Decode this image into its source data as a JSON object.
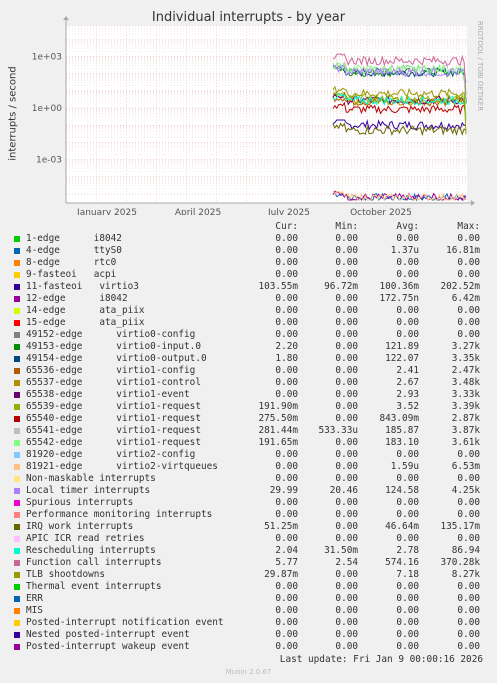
{
  "title": "Individual interrupts - by year",
  "watermark": "RRDTOOL / TOBI OETIKER",
  "footer": "Munin 2.0.67",
  "last_update": "Last update: Fri Jan  9 00:00:16 2026",
  "columns": [
    "Cur:",
    "Min:",
    "Avg:",
    "Max:"
  ],
  "chart_data": {
    "type": "line",
    "title": "Individual interrupts - by year",
    "ylabel": "interrupts / second",
    "xlabel": "",
    "y_scale": "log",
    "ylim": [
      3e-06,
      60000
    ],
    "y_ticks": [
      {
        "value": 0.001,
        "label": "1e-03"
      },
      {
        "value": 1,
        "label": "1e+00"
      },
      {
        "value": 1000,
        "label": "1e+03"
      }
    ],
    "x_ticks": [
      "January 2025",
      "April 2025",
      "July 2025",
      "October 2025"
    ],
    "grid": true,
    "series": [
      {
        "name": "1-edge      i8042",
        "color": "#00cc00",
        "cur": "0.00",
        "min": "0.00",
        "avg": "0.00",
        "max": "0.00"
      },
      {
        "name": "4-edge      ttyS0",
        "color": "#0066b3",
        "cur": "0.00",
        "min": "0.00",
        "avg": "1.37u",
        "max": "16.81m"
      },
      {
        "name": "8-edge      rtc0",
        "color": "#ff8000",
        "cur": "0.00",
        "min": "0.00",
        "avg": "0.00",
        "max": "0.00"
      },
      {
        "name": "9-fasteoi   acpi",
        "color": "#ffcc00",
        "cur": "0.00",
        "min": "0.00",
        "avg": "0.00",
        "max": "0.00"
      },
      {
        "name": "11-fasteoi   virtio3",
        "color": "#330099",
        "cur": "103.55m",
        "min": "96.72m",
        "avg": "100.36m",
        "max": "202.52m"
      },
      {
        "name": "12-edge      i8042",
        "color": "#990099",
        "cur": "0.00",
        "min": "0.00",
        "avg": "172.75n",
        "max": "6.42m"
      },
      {
        "name": "14-edge      ata_piix",
        "color": "#ccff00",
        "cur": "0.00",
        "min": "0.00",
        "avg": "0.00",
        "max": "0.00"
      },
      {
        "name": "15-edge      ata_piix",
        "color": "#ff0000",
        "cur": "0.00",
        "min": "0.00",
        "avg": "0.00",
        "max": "0.00"
      },
      {
        "name": "49152-edge      virtio0-config",
        "color": "#808080",
        "cur": "0.00",
        "min": "0.00",
        "avg": "0.00",
        "max": "0.00"
      },
      {
        "name": "49153-edge      virtio0-input.0",
        "color": "#008f00",
        "cur": "2.20",
        "min": "0.00",
        "avg": "121.89",
        "max": "3.27k"
      },
      {
        "name": "49154-edge      virtio0-output.0",
        "color": "#00487d",
        "cur": "1.80",
        "min": "0.00",
        "avg": "122.07",
        "max": "3.35k"
      },
      {
        "name": "65536-edge      virtio1-config",
        "color": "#b35a00",
        "cur": "0.00",
        "min": "0.00",
        "avg": "2.41",
        "max": "2.47k"
      },
      {
        "name": "65537-edge      virtio1-control",
        "color": "#b38f00",
        "cur": "0.00",
        "min": "0.00",
        "avg": "2.67",
        "max": "3.48k"
      },
      {
        "name": "65538-edge      virtio1-event",
        "color": "#6b006b",
        "cur": "0.00",
        "min": "0.00",
        "avg": "2.93",
        "max": "3.33k"
      },
      {
        "name": "65539-edge      virtio1-request",
        "color": "#8fb300",
        "cur": "191.90m",
        "min": "0.00",
        "avg": "3.52",
        "max": "3.39k"
      },
      {
        "name": "65540-edge      virtio1-request",
        "color": "#b30000",
        "cur": "275.50m",
        "min": "0.00",
        "avg": "843.09m",
        "max": "2.87k"
      },
      {
        "name": "65541-edge      virtio1-request",
        "color": "#bebebe",
        "cur": "281.44m",
        "min": "533.33u",
        "avg": "185.87",
        "max": "3.87k"
      },
      {
        "name": "65542-edge      virtio1-request",
        "color": "#80ff80",
        "cur": "191.65m",
        "min": "0.00",
        "avg": "183.10",
        "max": "3.61k"
      },
      {
        "name": "81920-edge      virtio2-config",
        "color": "#80c9ff",
        "cur": "0.00",
        "min": "0.00",
        "avg": "0.00",
        "max": "0.00"
      },
      {
        "name": "81921-edge      virtio2-virtqueues",
        "color": "#ffc080",
        "cur": "0.00",
        "min": "0.00",
        "avg": "1.59u",
        "max": "6.53m"
      },
      {
        "name": "Non-maskable interrupts",
        "color": "#ffe680",
        "cur": "0.00",
        "min": "0.00",
        "avg": "0.00",
        "max": "0.00"
      },
      {
        "name": "Local timer interrupts",
        "color": "#aa80ff",
        "cur": "29.99",
        "min": "20.46",
        "avg": "124.58",
        "max": "4.25k"
      },
      {
        "name": "Spurious interrupts",
        "color": "#ee00cc",
        "cur": "0.00",
        "min": "0.00",
        "avg": "0.00",
        "max": "0.00"
      },
      {
        "name": "Performance monitoring interrupts",
        "color": "#ff8080",
        "cur": "0.00",
        "min": "0.00",
        "avg": "0.00",
        "max": "0.00"
      },
      {
        "name": "IRQ work interrupts",
        "color": "#666600",
        "cur": "51.25m",
        "min": "0.00",
        "avg": "46.64m",
        "max": "135.17m"
      },
      {
        "name": "APIC ICR read retries",
        "color": "#ffbfff",
        "cur": "0.00",
        "min": "0.00",
        "avg": "0.00",
        "max": "0.00"
      },
      {
        "name": "Rescheduling interrupts",
        "color": "#00ffcc",
        "cur": "2.04",
        "min": "31.50m",
        "avg": "2.78",
        "max": "86.94"
      },
      {
        "name": "Function call interrupts",
        "color": "#cc6699",
        "cur": "5.77",
        "min": "2.54",
        "avg": "574.16",
        "max": "370.28k"
      },
      {
        "name": "TLB shootdowns",
        "color": "#999900",
        "cur": "29.87m",
        "min": "0.00",
        "avg": "7.18",
        "max": "8.27k"
      },
      {
        "name": "Thermal event interrupts",
        "color": "#00cc00",
        "cur": "0.00",
        "min": "0.00",
        "avg": "0.00",
        "max": "0.00"
      },
      {
        "name": "ERR",
        "color": "#0066b3",
        "cur": "0.00",
        "min": "0.00",
        "avg": "0.00",
        "max": "0.00"
      },
      {
        "name": "MIS",
        "color": "#ff8000",
        "cur": "0.00",
        "min": "0.00",
        "avg": "0.00",
        "max": "0.00"
      },
      {
        "name": "Posted-interrupt notification event",
        "color": "#ffcc00",
        "cur": "0.00",
        "min": "0.00",
        "avg": "0.00",
        "max": "0.00"
      },
      {
        "name": "Nested posted-interrupt event",
        "color": "#330099",
        "cur": "0.00",
        "min": "0.00",
        "avg": "0.00",
        "max": "0.00"
      },
      {
        "name": "Posted-interrupt wakeup event",
        "color": "#990099",
        "cur": "0.00",
        "min": "0.00",
        "avg": "0.00",
        "max": "0.00"
      }
    ]
  }
}
